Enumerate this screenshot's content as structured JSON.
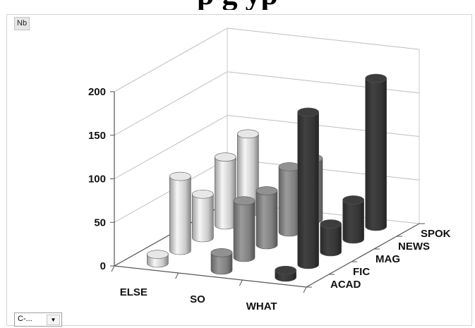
{
  "title_visible_fragment": "p                                         g                    yp",
  "field_button": "Nb",
  "filter": {
    "value": "C-...",
    "arrow": "▼"
  },
  "colors": {
    "ELSE": "#dcdcdc",
    "SO": "#8a8a8a",
    "WHAT": "#3a3a3a"
  },
  "chart_data": {
    "type": "bar",
    "style": "3d-cylinder",
    "categories": [
      "ELSE",
      "SO",
      "WHAT"
    ],
    "depth_categories": [
      "ACAD",
      "FIC",
      "MAG",
      "NEWS",
      "SPOK"
    ],
    "series": [
      {
        "depth": "ACAD",
        "values": [
          10,
          20,
          8
        ]
      },
      {
        "depth": "FIC",
        "values": [
          85,
          65,
          175
        ]
      },
      {
        "depth": "MAG",
        "values": [
          50,
          62,
          32
        ]
      },
      {
        "depth": "NEWS",
        "values": [
          78,
          75,
          45
        ]
      },
      {
        "depth": "SPOK",
        "values": [
          90,
          70,
          170
        ]
      }
    ],
    "yticks": [
      0,
      50,
      100,
      150,
      200
    ],
    "ylim": [
      0,
      200
    ],
    "grid": true,
    "legend": "none"
  }
}
